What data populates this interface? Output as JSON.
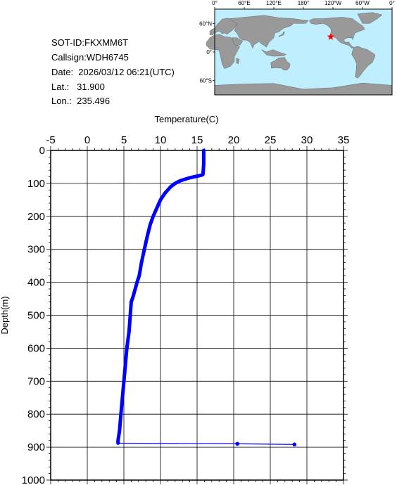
{
  "info": {
    "sot_id": "SOT-ID:FKXMM6T",
    "callsign": "Callsign:WDH6745",
    "date": "Date:  2026/03/12 06:21(UTC)",
    "lat": "Lat.:   31.900",
    "lon": "Lon.:  235.496"
  },
  "map": {
    "lon_labels": [
      "0°",
      "60°E",
      "120°E",
      "180°",
      "120°W",
      "60°W",
      "0°"
    ],
    "lat_labels": [
      "60°N",
      "0°",
      "60°S"
    ],
    "marker": {
      "lat": 31.9,
      "lon": 235.496
    },
    "colors": {
      "ocean": "#bfefff",
      "land": "#999999",
      "marker": "#ff0000"
    }
  },
  "chart_data": {
    "type": "line",
    "xlabel": "Temperature(C)",
    "ylabel": "Depth(m)",
    "xlim": [
      -5,
      35
    ],
    "ylim": [
      1000,
      0
    ],
    "x_ticks": [
      "-5",
      "0",
      "5",
      "10",
      "15",
      "20",
      "25",
      "30",
      "35"
    ],
    "y_ticks": [
      "0",
      "100",
      "200",
      "300",
      "400",
      "500",
      "600",
      "700",
      "800",
      "900",
      "1000"
    ],
    "grid": true,
    "series": [
      {
        "color": "#0000ff",
        "temperature": [
          15.9,
          15.9,
          15.9,
          15.85,
          15.8,
          15.7,
          15.6,
          15.5,
          15.0,
          14.0,
          12.7,
          12.0,
          11.4,
          10.6,
          10.0,
          9.6,
          9.3,
          9.0,
          8.6,
          8.2,
          7.8,
          7.4,
          7.1,
          6.8,
          6.55,
          6.3,
          6.0,
          5.9,
          5.7,
          5.4,
          5.2,
          5.0,
          4.8,
          4.6,
          4.4,
          4.2,
          4.2
        ],
        "depth": [
          0,
          20,
          40,
          60,
          73,
          74,
          75,
          76,
          78,
          83,
          92,
          100,
          110,
          130,
          150,
          170,
          185,
          200,
          225,
          260,
          300,
          340,
          380,
          400,
          420,
          440,
          460,
          490,
          550,
          600,
          650,
          700,
          750,
          800,
          850,
          880,
          888
        ]
      },
      {
        "color": "#0000ff",
        "temperature": [
          4.2,
          20.5,
          28.3
        ],
        "depth": [
          888,
          890,
          892
        ],
        "markers": true
      }
    ]
  }
}
